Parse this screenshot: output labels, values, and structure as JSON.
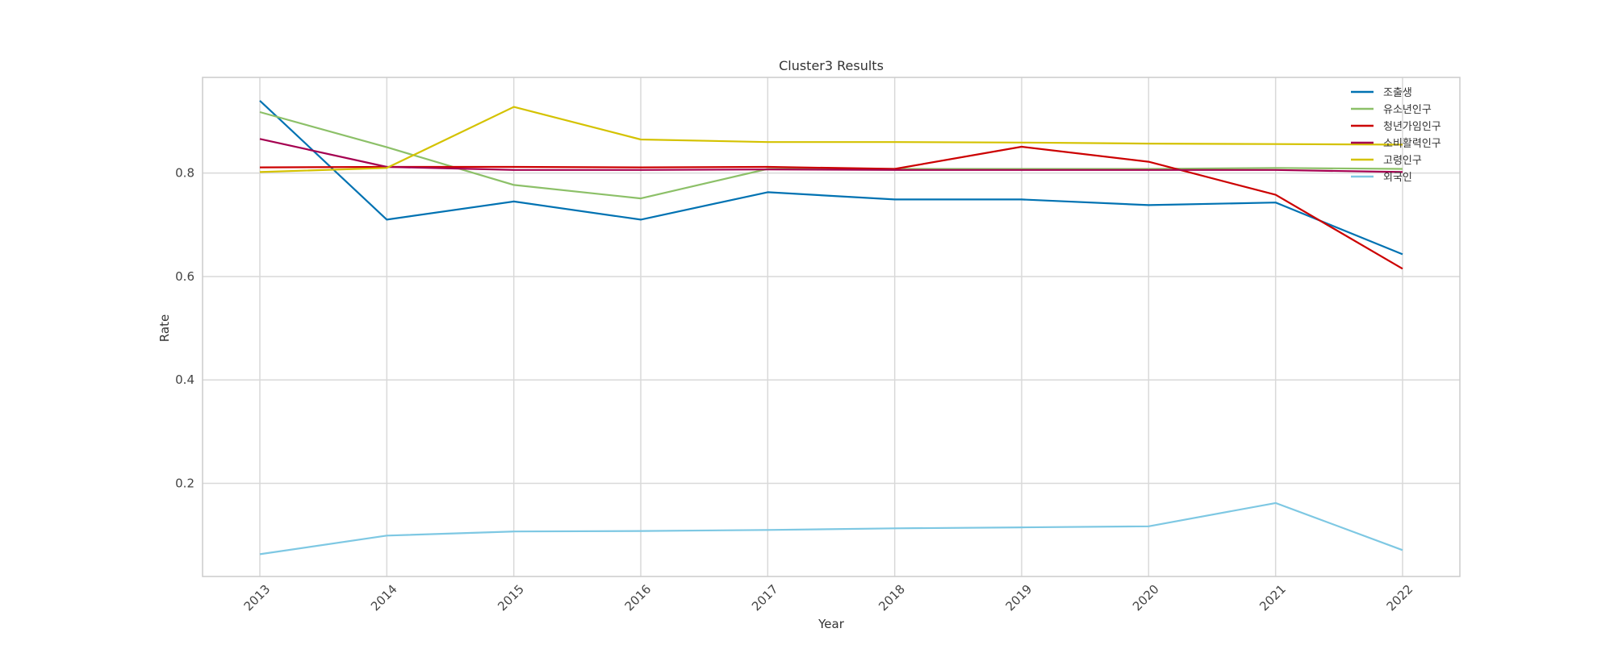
{
  "chart_data": {
    "type": "line",
    "title": "Cluster3 Results",
    "xlabel": "Year",
    "ylabel": "Rate",
    "x": [
      "2013",
      "2014",
      "2015",
      "2016",
      "2017",
      "2018",
      "2019",
      "2020",
      "2021",
      "2022"
    ],
    "ylim": [
      0.02,
      0.985
    ],
    "yticks": [
      "0.2",
      "0.4",
      "0.6",
      "0.8"
    ],
    "grid": true,
    "legend_position": "top-right",
    "series": [
      {
        "name": "조출생",
        "color": "#0072b2",
        "values": [
          0.94,
          0.71,
          0.745,
          0.71,
          0.763,
          0.749,
          0.749,
          0.738,
          0.743,
          0.643
        ]
      },
      {
        "name": "유소년인구",
        "color": "#8cc068",
        "values": [
          0.918,
          0.85,
          0.777,
          0.751,
          0.808,
          0.808,
          0.808,
          0.808,
          0.81,
          0.808
        ]
      },
      {
        "name": "청년가임인구",
        "color": "#cc0000",
        "values": [
          0.811,
          0.812,
          0.812,
          0.811,
          0.812,
          0.808,
          0.851,
          0.822,
          0.758,
          0.615
        ]
      },
      {
        "name": "소비활력인구",
        "color": "#a50050",
        "values": [
          0.866,
          0.812,
          0.806,
          0.806,
          0.807,
          0.806,
          0.806,
          0.806,
          0.806,
          0.802
        ]
      },
      {
        "name": "고령인구",
        "color": "#d4c200",
        "values": [
          0.802,
          0.81,
          0.928,
          0.865,
          0.86,
          0.86,
          0.859,
          0.857,
          0.856,
          0.855
        ]
      },
      {
        "name": "외국인",
        "color": "#7ec8e3",
        "values": [
          0.063,
          0.099,
          0.107,
          0.108,
          0.11,
          0.113,
          0.115,
          0.117,
          0.162,
          0.071
        ]
      }
    ]
  }
}
